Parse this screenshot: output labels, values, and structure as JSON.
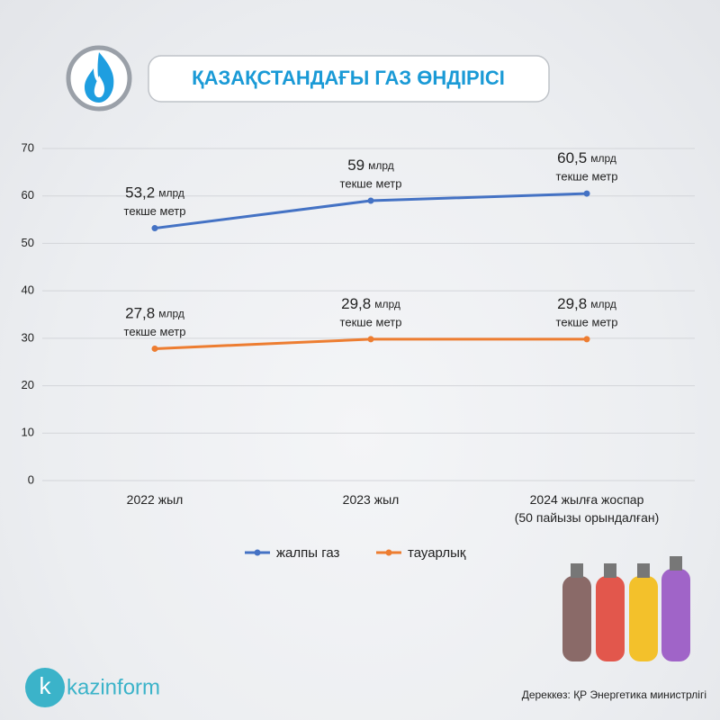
{
  "brand": "kazinform",
  "chart_data": {
    "type": "line",
    "title": "ҚАЗАҚСТАНДАҒЫ ГАЗ ӨНДІРІСІ",
    "source": "Дереккөз: ҚР Энергетика министрлігі",
    "categories": [
      "2022 жыл",
      "2023 жыл",
      "2024 жылға жоспар\n(50 пайызы орындалған)"
    ],
    "unit_labels": [
      "млрд",
      "текше метр"
    ],
    "series": [
      {
        "name": "жалпы газ",
        "color": "#4472c4",
        "values": [
          53.2,
          59,
          60.5
        ],
        "value_labels": [
          "53,2",
          "59",
          "60,5"
        ]
      },
      {
        "name": "тауарлық",
        "color": "#ed7d31",
        "values": [
          27.8,
          29.8,
          29.8
        ],
        "value_labels": [
          "27,8",
          "29,8",
          "29,8"
        ]
      }
    ],
    "ylim": [
      0,
      70
    ],
    "yticks": [
      0,
      10,
      20,
      30,
      40,
      50,
      60,
      70
    ],
    "grid": true,
    "legend": "bottom"
  }
}
